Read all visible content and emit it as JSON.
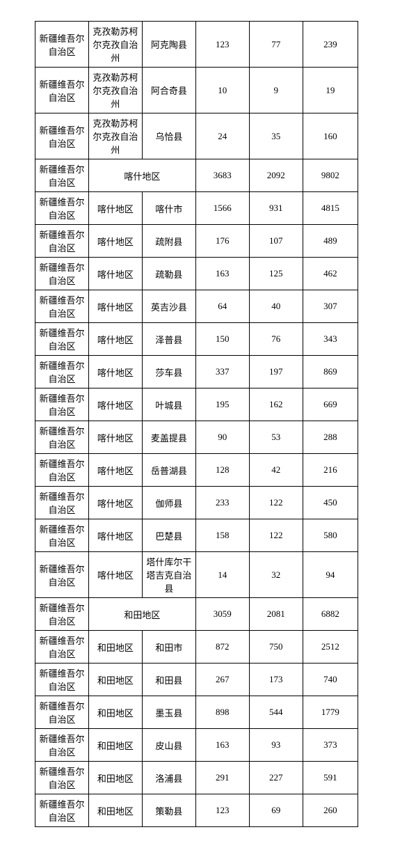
{
  "table": {
    "columns": [
      {
        "class": "col1"
      },
      {
        "class": "col2"
      },
      {
        "class": "col3"
      },
      {
        "class": "col4"
      },
      {
        "class": "col5"
      },
      {
        "class": "col6"
      }
    ],
    "border_color": "#000000",
    "background_color": "#ffffff",
    "font_size": 13,
    "rows": [
      {
        "cells": [
          {
            "text": "新疆维吾尔自治区"
          },
          {
            "text": "克孜勒苏柯尔克孜自治州"
          },
          {
            "text": "阿克陶县"
          },
          {
            "text": "123"
          },
          {
            "text": "77"
          },
          {
            "text": "239"
          }
        ]
      },
      {
        "cells": [
          {
            "text": "新疆维吾尔自治区"
          },
          {
            "text": "克孜勒苏柯尔克孜自治州"
          },
          {
            "text": "阿合奇县"
          },
          {
            "text": "10"
          },
          {
            "text": "9"
          },
          {
            "text": "19"
          }
        ]
      },
      {
        "cells": [
          {
            "text": "新疆维吾尔自治区"
          },
          {
            "text": "克孜勒苏柯尔克孜自治州"
          },
          {
            "text": "乌恰县"
          },
          {
            "text": "24"
          },
          {
            "text": "35"
          },
          {
            "text": "160"
          }
        ]
      },
      {
        "cells": [
          {
            "text": "新疆维吾尔自治区"
          },
          {
            "text": "喀什地区",
            "colspan": 2
          },
          {
            "text": "3683"
          },
          {
            "text": "2092"
          },
          {
            "text": "9802"
          }
        ]
      },
      {
        "cells": [
          {
            "text": "新疆维吾尔自治区"
          },
          {
            "text": "喀什地区"
          },
          {
            "text": "喀什市"
          },
          {
            "text": "1566"
          },
          {
            "text": "931"
          },
          {
            "text": "4815"
          }
        ]
      },
      {
        "cells": [
          {
            "text": "新疆维吾尔自治区"
          },
          {
            "text": "喀什地区"
          },
          {
            "text": "疏附县"
          },
          {
            "text": "176"
          },
          {
            "text": "107"
          },
          {
            "text": "489"
          }
        ]
      },
      {
        "cells": [
          {
            "text": "新疆维吾尔自治区"
          },
          {
            "text": "喀什地区"
          },
          {
            "text": "疏勒县"
          },
          {
            "text": "163"
          },
          {
            "text": "125"
          },
          {
            "text": "462"
          }
        ]
      },
      {
        "cells": [
          {
            "text": "新疆维吾尔自治区"
          },
          {
            "text": "喀什地区"
          },
          {
            "text": "英吉沙县"
          },
          {
            "text": "64"
          },
          {
            "text": "40"
          },
          {
            "text": "307"
          }
        ]
      },
      {
        "cells": [
          {
            "text": "新疆维吾尔自治区"
          },
          {
            "text": "喀什地区"
          },
          {
            "text": "泽普县"
          },
          {
            "text": "150"
          },
          {
            "text": "76"
          },
          {
            "text": "343"
          }
        ]
      },
      {
        "cells": [
          {
            "text": "新疆维吾尔自治区"
          },
          {
            "text": "喀什地区"
          },
          {
            "text": "莎车县"
          },
          {
            "text": "337"
          },
          {
            "text": "197"
          },
          {
            "text": "869"
          }
        ]
      },
      {
        "cells": [
          {
            "text": "新疆维吾尔自治区"
          },
          {
            "text": "喀什地区"
          },
          {
            "text": "叶城县"
          },
          {
            "text": "195"
          },
          {
            "text": "162"
          },
          {
            "text": "669"
          }
        ]
      },
      {
        "cells": [
          {
            "text": "新疆维吾尔自治区"
          },
          {
            "text": "喀什地区"
          },
          {
            "text": "麦盖提县"
          },
          {
            "text": "90"
          },
          {
            "text": "53"
          },
          {
            "text": "288"
          }
        ]
      },
      {
        "cells": [
          {
            "text": "新疆维吾尔自治区"
          },
          {
            "text": "喀什地区"
          },
          {
            "text": "岳普湖县"
          },
          {
            "text": "128"
          },
          {
            "text": "42"
          },
          {
            "text": "216"
          }
        ]
      },
      {
        "cells": [
          {
            "text": "新疆维吾尔自治区"
          },
          {
            "text": "喀什地区"
          },
          {
            "text": "伽师县"
          },
          {
            "text": "233"
          },
          {
            "text": "122"
          },
          {
            "text": "450"
          }
        ]
      },
      {
        "cells": [
          {
            "text": "新疆维吾尔自治区"
          },
          {
            "text": "喀什地区"
          },
          {
            "text": "巴楚县"
          },
          {
            "text": "158"
          },
          {
            "text": "122"
          },
          {
            "text": "580"
          }
        ]
      },
      {
        "cells": [
          {
            "text": "新疆维吾尔自治区"
          },
          {
            "text": "喀什地区"
          },
          {
            "text": "塔什库尔干塔吉克自治县"
          },
          {
            "text": "14"
          },
          {
            "text": "32"
          },
          {
            "text": "94"
          }
        ]
      },
      {
        "cells": [
          {
            "text": "新疆维吾尔自治区"
          },
          {
            "text": "和田地区",
            "colspan": 2
          },
          {
            "text": "3059"
          },
          {
            "text": "2081"
          },
          {
            "text": "6882"
          }
        ]
      },
      {
        "cells": [
          {
            "text": "新疆维吾尔自治区"
          },
          {
            "text": "和田地区"
          },
          {
            "text": "和田市"
          },
          {
            "text": "872"
          },
          {
            "text": "750"
          },
          {
            "text": "2512"
          }
        ]
      },
      {
        "cells": [
          {
            "text": "新疆维吾尔自治区"
          },
          {
            "text": "和田地区"
          },
          {
            "text": "和田县"
          },
          {
            "text": "267"
          },
          {
            "text": "173"
          },
          {
            "text": "740"
          }
        ]
      },
      {
        "cells": [
          {
            "text": "新疆维吾尔自治区"
          },
          {
            "text": "和田地区"
          },
          {
            "text": "墨玉县"
          },
          {
            "text": "898"
          },
          {
            "text": "544"
          },
          {
            "text": "1779"
          }
        ]
      },
      {
        "cells": [
          {
            "text": "新疆维吾尔自治区"
          },
          {
            "text": "和田地区"
          },
          {
            "text": "皮山县"
          },
          {
            "text": "163"
          },
          {
            "text": "93"
          },
          {
            "text": "373"
          }
        ]
      },
      {
        "cells": [
          {
            "text": "新疆维吾尔自治区"
          },
          {
            "text": "和田地区"
          },
          {
            "text": "洛浦县"
          },
          {
            "text": "291"
          },
          {
            "text": "227"
          },
          {
            "text": "591"
          }
        ]
      },
      {
        "cells": [
          {
            "text": "新疆维吾尔自治区"
          },
          {
            "text": "和田地区"
          },
          {
            "text": "策勒县"
          },
          {
            "text": "123"
          },
          {
            "text": "69"
          },
          {
            "text": "260"
          }
        ]
      }
    ]
  }
}
